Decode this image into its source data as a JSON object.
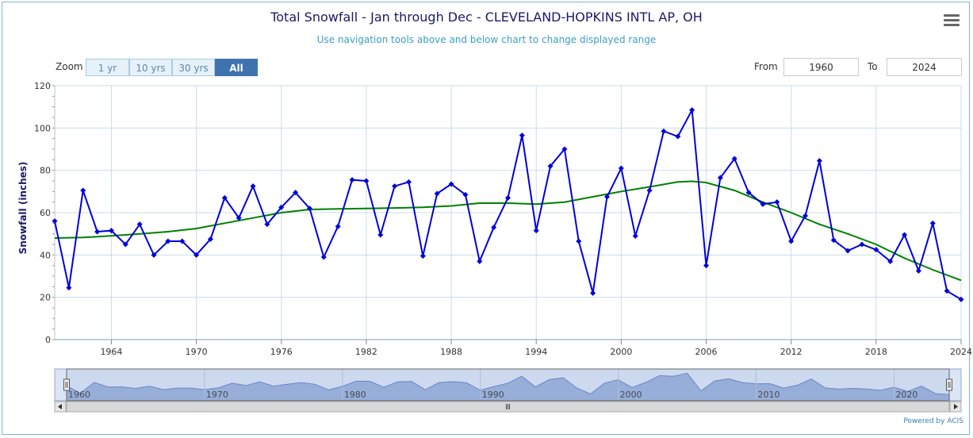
{
  "header": {
    "title": "Total Snowfall - Jan through Dec - CLEVELAND-HOPKINS INTL AP, OH",
    "subtitle": "Use navigation tools above and below chart to change displayed range"
  },
  "zoom": {
    "label": "Zoom",
    "buttons": [
      "1 yr",
      "10 yrs",
      "30 yrs",
      "All"
    ],
    "active": "All"
  },
  "range": {
    "from_label": "From",
    "from_value": "1960",
    "to_label": "To",
    "to_value": "2024"
  },
  "footer": {
    "powered_by": "Powered by ACIS"
  },
  "colors": {
    "series": "#0000dd",
    "trend": "#008000",
    "grid": "#c8ddea",
    "navigator_fill": "#9fb4dc"
  },
  "chart_data": {
    "type": "line",
    "ylabel": "Snowfall (inches)",
    "xlabel": "",
    "ylim": [
      0,
      120
    ],
    "xlim": [
      1960,
      2024
    ],
    "yticks": [
      "0",
      "20",
      "40",
      "60",
      "80",
      "100",
      "120"
    ],
    "xticks": [
      "1964",
      "1970",
      "1976",
      "1982",
      "1988",
      "1994",
      "2000",
      "2006",
      "2012",
      "2018",
      "2024"
    ],
    "grid": true,
    "series": [
      {
        "x": [
          1960,
          1961,
          1962,
          1963,
          1964,
          1965,
          1966,
          1967,
          1968,
          1969,
          1970,
          1971,
          1972,
          1973,
          1974,
          1975,
          1976,
          1977,
          1978,
          1979,
          1980,
          1981,
          1982,
          1983,
          1984,
          1985,
          1986,
          1987,
          1988,
          1989,
          1990,
          1991,
          1992,
          1993,
          1994,
          1995,
          1996,
          1997,
          1998,
          1999,
          2000,
          2001,
          2002,
          2003,
          2004,
          2005,
          2006,
          2007,
          2008,
          2009,
          2010,
          2011,
          2012,
          2013,
          2014,
          2015,
          2016,
          2017,
          2018,
          2019,
          2020,
          2021,
          2022,
          2023,
          2024
        ],
        "y": [
          56,
          24.5,
          70.5,
          51,
          51.5,
          45,
          54.5,
          40,
          46.5,
          46.5,
          40,
          47.5,
          67,
          57.5,
          72.5,
          54.5,
          62.5,
          69.5,
          62,
          39,
          53.5,
          75.5,
          75,
          49.5,
          72.5,
          74.5,
          39.5,
          69,
          73.5,
          68.5,
          37,
          53,
          67,
          96.5,
          51.5,
          82,
          90,
          46.5,
          22,
          67.5,
          81,
          49,
          70.5,
          98.5,
          96,
          108.5,
          35,
          76.5,
          85.5,
          69.5,
          64,
          65,
          46.5,
          58.5,
          84.5,
          47,
          42,
          45,
          42.5,
          37,
          49.5,
          32.5,
          55,
          23,
          19
        ]
      },
      {
        "x": [
          1960,
          1962,
          1964,
          1966,
          1968,
          1970,
          1972,
          1974,
          1976,
          1978,
          1980,
          1982,
          1984,
          1986,
          1988,
          1990,
          1992,
          1994,
          1996,
          1998,
          2000,
          2002,
          2004,
          2005,
          2006,
          2008,
          2010,
          2012,
          2014,
          2016,
          2018,
          2020,
          2022,
          2024
        ],
        "y": [
          48,
          48.3,
          49,
          50,
          51,
          52.5,
          55,
          57.5,
          60,
          61.5,
          61.8,
          62,
          62.2,
          62.5,
          63.2,
          64.5,
          64.5,
          64,
          65,
          67.5,
          70,
          72.2,
          74.5,
          74.8,
          74.2,
          70.5,
          65,
          60,
          54.5,
          50,
          45,
          38.5,
          33,
          28
        ]
      }
    ],
    "navigator": {
      "ticks": [
        "1960",
        "1970",
        "1980",
        "1990",
        "2000",
        "2010",
        "2020"
      ]
    }
  }
}
